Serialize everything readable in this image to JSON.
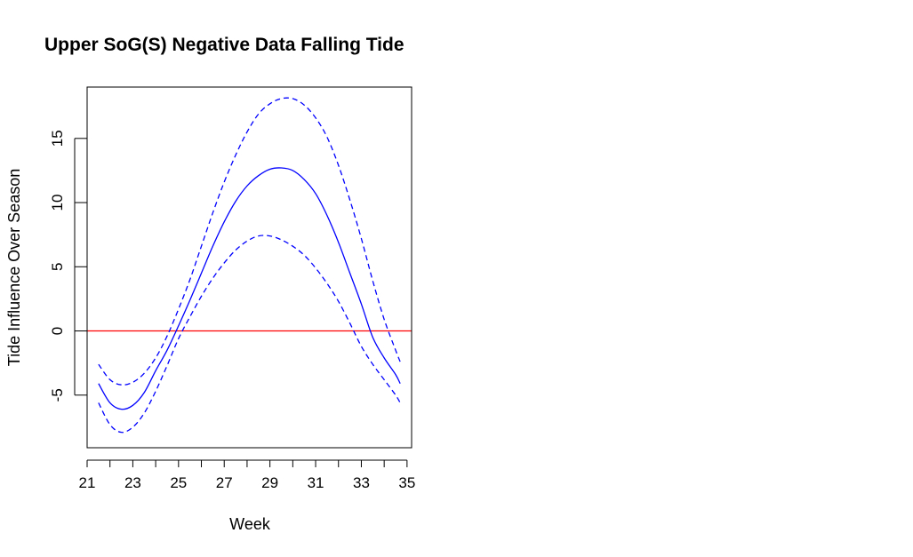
{
  "chart_data": {
    "type": "line",
    "title": "Upper SoG(S) Negative Data Falling Tide",
    "xlabel": "Week",
    "ylabel": "Tide Influence Over Season",
    "xlim": [
      21.0,
      35.2
    ],
    "ylim": [
      -9.1,
      19.0
    ],
    "x_ticks": [
      21,
      22,
      23,
      24,
      25,
      26,
      27,
      28,
      29,
      30,
      31,
      32,
      33,
      34,
      35
    ],
    "x_tick_labels": [
      "21",
      "23",
      "25",
      "27",
      "29",
      "31",
      "33",
      "35"
    ],
    "y_ticks": [
      -5,
      0,
      5,
      10,
      15
    ],
    "y_tick_labels": [
      "-5",
      "0",
      "5",
      "10",
      "15"
    ],
    "x": [
      21.5,
      22.0,
      22.5,
      23.0,
      23.5,
      24.0,
      24.5,
      25.0,
      25.5,
      26.0,
      26.5,
      27.0,
      27.5,
      28.0,
      28.5,
      29.0,
      29.5,
      30.0,
      30.5,
      31.0,
      31.5,
      32.0,
      32.5,
      33.0,
      33.5,
      34.0,
      34.5,
      34.7
    ],
    "series": [
      {
        "role": "fit",
        "style": "solid",
        "color": "#0000ff",
        "values": [
          -4.1,
          -5.6,
          -6.1,
          -5.8,
          -4.8,
          -3.1,
          -1.5,
          0.4,
          2.4,
          4.5,
          6.6,
          8.5,
          10.1,
          11.3,
          12.1,
          12.6,
          12.7,
          12.5,
          11.8,
          10.7,
          9.0,
          6.9,
          4.5,
          2.1,
          -0.5,
          -2.1,
          -3.4,
          -4.1
        ]
      },
      {
        "role": "upper",
        "style": "dashed",
        "color": "#0000ff",
        "values": [
          -2.6,
          -3.8,
          -4.2,
          -4.0,
          -3.3,
          -2.1,
          -0.4,
          1.7,
          4.0,
          6.6,
          9.2,
          11.6,
          13.7,
          15.5,
          16.9,
          17.7,
          18.1,
          18.1,
          17.6,
          16.6,
          15.1,
          12.9,
          10.2,
          7.2,
          3.9,
          0.9,
          -1.5,
          -2.4
        ]
      },
      {
        "role": "lower",
        "style": "dashed",
        "color": "#0000ff",
        "values": [
          -5.6,
          -7.3,
          -7.9,
          -7.5,
          -6.4,
          -4.7,
          -2.7,
          -0.6,
          1.1,
          2.7,
          4.1,
          5.3,
          6.3,
          7.0,
          7.4,
          7.4,
          7.1,
          6.6,
          5.9,
          4.9,
          3.7,
          2.3,
          0.6,
          -1.2,
          -2.6,
          -3.8,
          -5.0,
          -5.6
        ]
      }
    ],
    "reference_line": {
      "y": 0,
      "color": "#ff0000"
    },
    "grid": false,
    "legend": "none"
  }
}
